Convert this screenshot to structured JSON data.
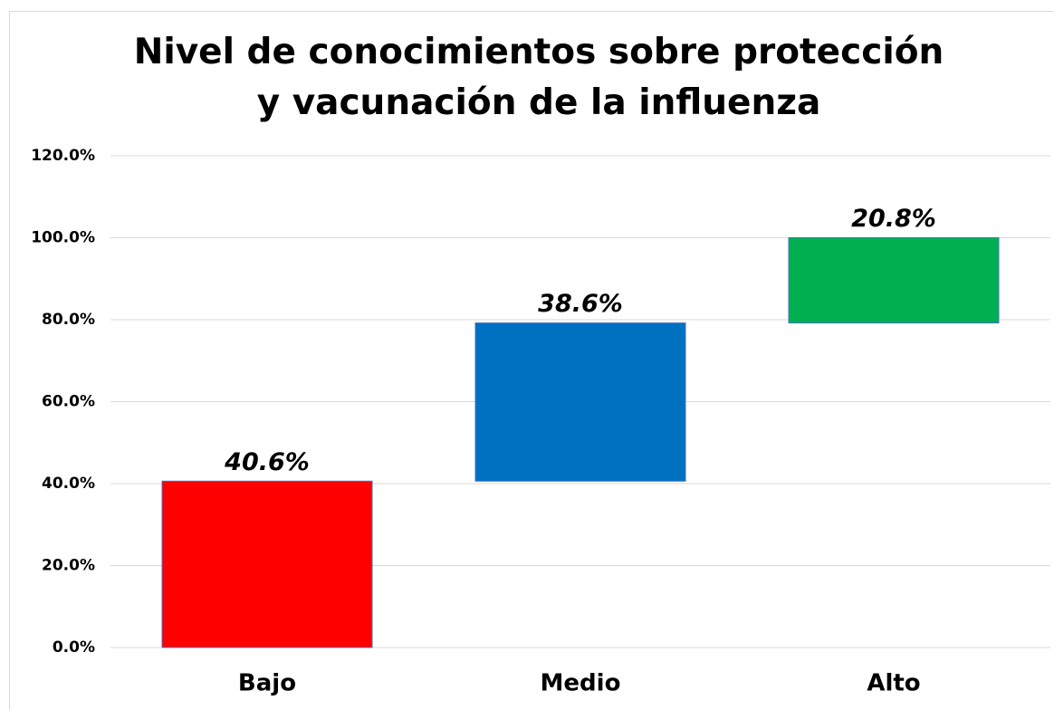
{
  "chart_data": {
    "type": "waterfall",
    "title": "Nivel de conocimientos sobre protección y vacunación de la influenza",
    "categories": [
      "Bajo",
      "Medio",
      "Alto"
    ],
    "values": [
      40.6,
      38.6,
      20.8
    ],
    "value_labels": [
      "40.6%",
      "38.6%",
      "20.8%"
    ],
    "colors": [
      "#ff0000",
      "#0070c0",
      "#00b050"
    ],
    "ylim": [
      0,
      120
    ],
    "yticks": [
      {
        "value": 0,
        "label": "0.0%"
      },
      {
        "value": 20,
        "label": "20.0%"
      },
      {
        "value": 40,
        "label": "40.0%"
      },
      {
        "value": 60,
        "label": "60.0%"
      },
      {
        "value": 80,
        "label": "80.0%"
      },
      {
        "value": 100,
        "label": "100.0%"
      },
      {
        "value": 120,
        "label": "120.0%"
      }
    ],
    "grid": true
  }
}
